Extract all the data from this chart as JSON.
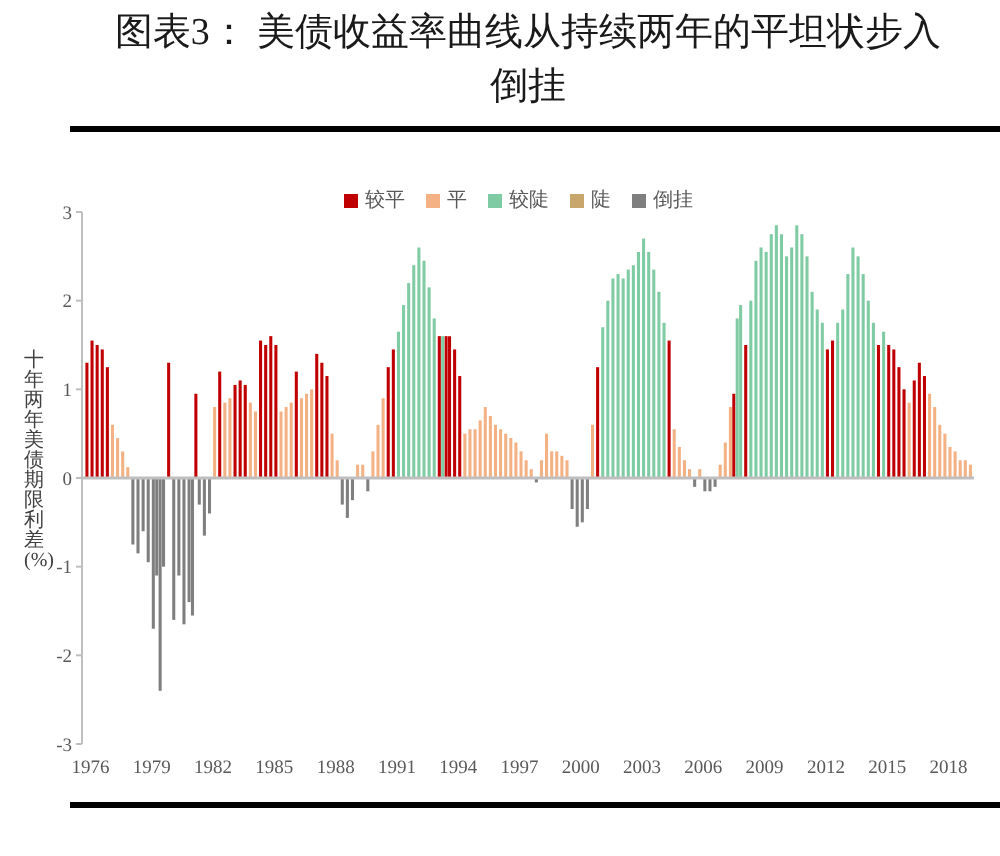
{
  "chart_data": {
    "type": "bar",
    "title": "图表3： 美债收益率曲线从持续两年的平坦状步入倒挂",
    "ylabel": "十年两年美债期限利差(%)",
    "xlim": [
      "1976-01",
      "2019-09"
    ],
    "xticks": [
      {
        "value": "1976-06",
        "label": "1976"
      },
      {
        "value": "1979-06",
        "label": "1979"
      },
      {
        "value": "1982-06",
        "label": "1982"
      },
      {
        "value": "1985-06",
        "label": "1985"
      },
      {
        "value": "1988-06",
        "label": "1988"
      },
      {
        "value": "1991-06",
        "label": "1991"
      },
      {
        "value": "1994-06",
        "label": "1994"
      },
      {
        "value": "1997-06",
        "label": "1997"
      },
      {
        "value": "2000-06",
        "label": "2000"
      },
      {
        "value": "2003-06",
        "label": "2003"
      },
      {
        "value": "2006-06",
        "label": "2006"
      },
      {
        "value": "2009-06",
        "label": "2009"
      },
      {
        "value": "2012-06",
        "label": "2012"
      },
      {
        "value": "2015-06",
        "label": "2015"
      },
      {
        "value": "2018-06",
        "label": "2018"
      }
    ],
    "ylim": [
      -3,
      3
    ],
    "yticks": [
      -3,
      -2,
      -1,
      0,
      1,
      2,
      3
    ],
    "legend": "top",
    "ref_lines": [
      {
        "axis": "y",
        "value": 0,
        "color": "#bfbfbf"
      }
    ],
    "series": [
      {
        "name": "较平",
        "color": "#c00000",
        "x": [
          "1976-04",
          "1976-07",
          "1976-10",
          "1977-01",
          "1977-04",
          "1980-04",
          "1981-08",
          "1982-10",
          "1983-07",
          "1983-10",
          "1984-01",
          "1984-10",
          "1985-01",
          "1985-04",
          "1985-07",
          "1986-07",
          "1987-07",
          "1987-10",
          "1988-01",
          "1991-01",
          "1991-04",
          "1993-07",
          "1993-11",
          "1994-01",
          "1994-04",
          "1994-07",
          "2001-04",
          "2004-10",
          "2007-12",
          "2008-07",
          "2012-07",
          "2012-10",
          "2015-01",
          "2015-07",
          "2015-10",
          "2016-01",
          "2016-04",
          "2016-10",
          "2017-01",
          "2017-04"
        ],
        "values": [
          1.3,
          1.55,
          1.5,
          1.45,
          1.25,
          1.3,
          0.95,
          1.2,
          1.05,
          1.1,
          1.05,
          1.55,
          1.5,
          1.6,
          1.5,
          1.2,
          1.4,
          1.3,
          1.15,
          1.25,
          1.45,
          1.6,
          1.6,
          1.6,
          1.45,
          1.15,
          1.25,
          1.55,
          0.95,
          1.5,
          1.45,
          1.55,
          1.5,
          1.5,
          1.45,
          1.25,
          1.0,
          1.1,
          1.3,
          1.15
        ]
      },
      {
        "name": "平",
        "color": "#f4b183",
        "x": [
          "1977-07",
          "1977-10",
          "1978-01",
          "1978-04",
          "1982-07",
          "1983-01",
          "1983-04",
          "1984-04",
          "1984-07",
          "1985-10",
          "1986-01",
          "1986-04",
          "1986-10",
          "1987-01",
          "1987-04",
          "1988-04",
          "1988-07",
          "1989-07",
          "1989-10",
          "1990-04",
          "1990-07",
          "1990-10",
          "1994-10",
          "1995-01",
          "1995-04",
          "1995-07",
          "1995-10",
          "1996-01",
          "1996-04",
          "1996-07",
          "1996-10",
          "1997-01",
          "1997-04",
          "1997-07",
          "1997-10",
          "1998-01",
          "1998-07",
          "1998-10",
          "1999-01",
          "1999-04",
          "1999-07",
          "1999-10",
          "2001-01",
          "2005-01",
          "2005-04",
          "2005-07",
          "2005-10",
          "2006-04",
          "2007-04",
          "2007-07",
          "2007-10",
          "2016-07",
          "2017-07",
          "2017-10",
          "2018-01",
          "2018-04",
          "2018-07",
          "2018-10",
          "2019-01",
          "2019-04",
          "2019-07"
        ],
        "values": [
          0.6,
          0.45,
          0.3,
          0.12,
          0.8,
          0.85,
          0.9,
          0.85,
          0.75,
          0.75,
          0.8,
          0.85,
          0.9,
          0.95,
          1.0,
          0.5,
          0.2,
          0.15,
          0.15,
          0.3,
          0.6,
          0.9,
          0.5,
          0.55,
          0.55,
          0.65,
          0.8,
          0.7,
          0.6,
          0.55,
          0.5,
          0.45,
          0.4,
          0.3,
          0.2,
          0.1,
          0.2,
          0.5,
          0.3,
          0.3,
          0.25,
          0.2,
          0.6,
          0.55,
          0.35,
          0.2,
          0.1,
          0.1,
          0.15,
          0.4,
          0.8,
          0.85,
          0.95,
          0.8,
          0.6,
          0.5,
          0.35,
          0.3,
          0.2,
          0.2,
          0.15
        ]
      },
      {
        "name": "较陡",
        "color": "#7fcca4",
        "x": [
          "1991-07",
          "1991-10",
          "1992-01",
          "1992-04",
          "1992-07",
          "1992-10",
          "1993-01",
          "1993-04",
          "1993-09",
          "2001-07",
          "2001-10",
          "2002-01",
          "2002-04",
          "2002-07",
          "2002-10",
          "2003-01",
          "2003-04",
          "2003-07",
          "2003-10",
          "2004-01",
          "2004-04",
          "2004-07",
          "2008-02",
          "2008-04",
          "2008-10",
          "2009-01",
          "2009-04",
          "2009-07",
          "2009-10",
          "2010-01",
          "2010-04",
          "2010-07",
          "2010-10",
          "2011-01",
          "2011-04",
          "2011-07",
          "2011-10",
          "2012-01",
          "2012-04",
          "2013-01",
          "2013-04",
          "2013-07",
          "2013-10",
          "2014-01",
          "2014-04",
          "2014-07",
          "2014-10",
          "2015-04"
        ],
        "values": [
          1.65,
          1.95,
          2.2,
          2.4,
          2.6,
          2.45,
          2.15,
          1.8,
          1.6,
          1.7,
          2.0,
          2.25,
          2.3,
          2.25,
          2.35,
          2.4,
          2.55,
          2.7,
          2.55,
          2.35,
          2.1,
          1.75,
          1.8,
          1.95,
          2.0,
          2.45,
          2.6,
          2.55,
          2.75,
          2.85,
          2.75,
          2.5,
          2.6,
          2.85,
          2.75,
          2.5,
          2.1,
          1.9,
          1.75,
          1.75,
          1.9,
          2.3,
          2.6,
          2.5,
          2.3,
          2.0,
          1.75,
          1.65
        ]
      },
      {
        "name": "陡",
        "color": "#c9a66b"
      },
      {
        "name": "倒挂",
        "color": "#7f7f7f",
        "x": [
          "1978-07",
          "1978-10",
          "1979-01",
          "1979-04",
          "1979-07",
          "1979-09",
          "1979-11",
          "1980-01",
          "1980-07",
          "1980-10",
          "1981-01",
          "1981-04",
          "1981-06",
          "1981-10",
          "1982-01",
          "1982-04",
          "1988-10",
          "1989-01",
          "1989-04",
          "1990-01",
          "1998-04",
          "2000-01",
          "2000-04",
          "2000-07",
          "2000-10",
          "2006-01",
          "2006-07",
          "2006-10",
          "2007-01"
        ],
        "values": [
          -0.75,
          -0.85,
          -0.6,
          -0.95,
          -1.7,
          -1.1,
          -2.4,
          -1.0,
          -1.6,
          -1.1,
          -1.65,
          -1.4,
          -1.55,
          -0.3,
          -0.65,
          -0.4,
          -0.3,
          -0.45,
          -0.25,
          -0.15,
          -0.05,
          -0.35,
          -0.55,
          -0.5,
          -0.35,
          -0.1,
          -0.15,
          -0.15,
          -0.1
        ]
      }
    ]
  }
}
